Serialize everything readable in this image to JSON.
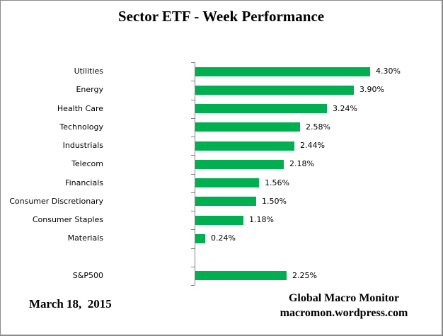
{
  "chart_data": {
    "type": "bar",
    "orientation": "horizontal",
    "title": "Sector ETF - Week Performance",
    "bar_color": "#00B050",
    "axis_color": "#808080",
    "grid": false,
    "legend": false,
    "xlim": [
      0,
      4.6
    ],
    "value_suffix": "%",
    "categories": [
      "Utilities",
      "Energy",
      "Health Care",
      "Technology",
      "Industrials",
      "Telecom",
      "Financials",
      "Consumer Discretionary",
      "Consumer Staples",
      "Materials"
    ],
    "values": [
      4.3,
      3.9,
      3.24,
      2.58,
      2.44,
      2.18,
      1.56,
      1.5,
      1.18,
      0.24
    ],
    "labels": [
      "4.30%",
      "3.90%",
      "3.24%",
      "2.58%",
      "2.44%",
      "2.18%",
      "1.56%",
      "1.50%",
      "1.18%",
      "0.24%"
    ],
    "benchmark": {
      "category": "S&P500",
      "value": 2.25,
      "label": "2.25%"
    }
  },
  "footer": {
    "date": "March 18,  2015",
    "credit_line1": "Global Macro Monitor",
    "credit_line2": "macromon.wordpress.com"
  }
}
